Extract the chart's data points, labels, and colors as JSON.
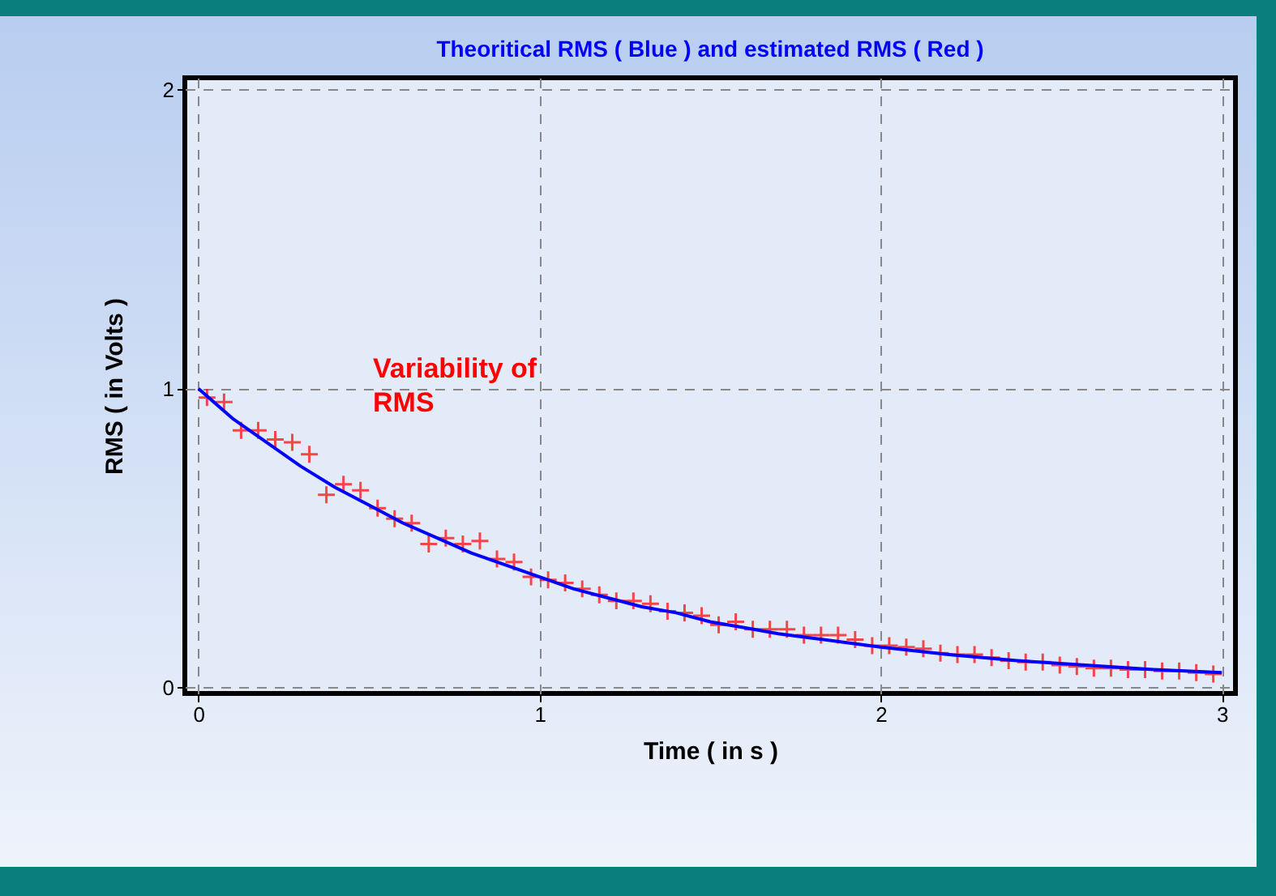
{
  "chart_data": {
    "type": "line",
    "title": "Theoritical RMS ( Blue ) and estimated RMS ( Red )",
    "xlabel": "Time ( in s )",
    "ylabel": "RMS ( in Volts )",
    "xlim": [
      -0.04,
      3.04
    ],
    "xticks": [
      0,
      1,
      2,
      3
    ],
    "ylim": [
      -0.02,
      2.04
    ],
    "yticks": [
      0,
      1,
      2
    ],
    "grid": true,
    "line_style": "solid",
    "annotations": [
      "Variability of\nRMS"
    ],
    "series": [
      {
        "type": "line",
        "color": "#0000ff",
        "x": [
          0,
          0.1,
          0.2,
          0.3,
          0.4,
          0.5,
          0.6,
          0.7,
          0.8,
          0.9,
          1,
          1.1,
          1.2,
          1.3,
          1.4,
          1.5,
          1.6,
          1.7,
          1.8,
          1.9,
          2,
          2.2,
          2.4,
          2.6,
          2.8,
          3
        ],
        "values": [
          1,
          0.9,
          0.82,
          0.74,
          0.67,
          0.61,
          0.55,
          0.5,
          0.45,
          0.41,
          0.37,
          0.33,
          0.3,
          0.27,
          0.25,
          0.22,
          0.2,
          0.18,
          0.165,
          0.15,
          0.135,
          0.11,
          0.09,
          0.075,
          0.06,
          0.05
        ]
      },
      {
        "type": "scatter",
        "marker": "cross",
        "color": "#ff0000",
        "x": [
          0.025,
          0.075,
          0.125,
          0.175,
          0.225,
          0.275,
          0.325,
          0.375,
          0.425,
          0.475,
          0.525,
          0.575,
          0.625,
          0.675,
          0.725,
          0.775,
          0.825,
          0.875,
          0.925,
          0.975,
          1.025,
          1.075,
          1.125,
          1.175,
          1.225,
          1.275,
          1.325,
          1.375,
          1.425,
          1.475,
          1.525,
          1.575,
          1.625,
          1.675,
          1.725,
          1.775,
          1.825,
          1.875,
          1.925,
          1.975,
          2.025,
          2.075,
          2.125,
          2.175,
          2.225,
          2.275,
          2.325,
          2.375,
          2.425,
          2.475,
          2.525,
          2.575,
          2.625,
          2.675,
          2.725,
          2.775,
          2.825,
          2.875,
          2.925,
          2.975
        ],
        "values": [
          0.97,
          0.955,
          0.86,
          0.86,
          0.83,
          0.82,
          0.78,
          0.645,
          0.68,
          0.66,
          0.6,
          0.565,
          0.55,
          0.48,
          0.5,
          0.48,
          0.49,
          0.43,
          0.42,
          0.37,
          0.36,
          0.35,
          0.33,
          0.31,
          0.29,
          0.29,
          0.28,
          0.255,
          0.25,
          0.24,
          0.21,
          0.22,
          0.195,
          0.195,
          0.195,
          0.175,
          0.175,
          0.175,
          0.16,
          0.14,
          0.14,
          0.135,
          0.13,
          0.115,
          0.11,
          0.11,
          0.1,
          0.09,
          0.085,
          0.085,
          0.075,
          0.07,
          0.065,
          0.065,
          0.06,
          0.06,
          0.055,
          0.055,
          0.05,
          0.045
        ]
      }
    ]
  }
}
